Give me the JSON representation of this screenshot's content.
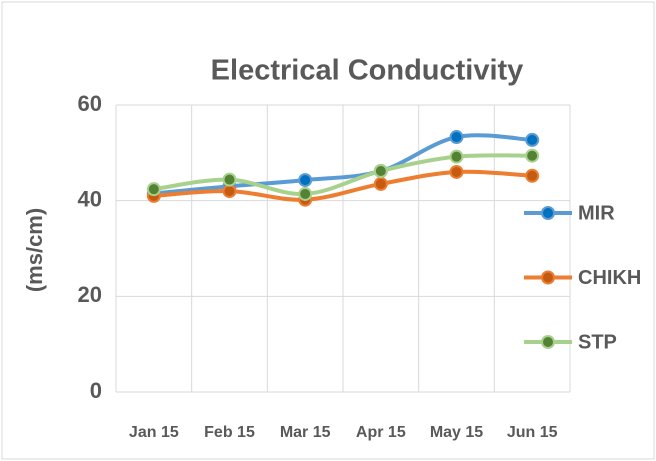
{
  "chart_data": {
    "type": "line",
    "title": "Electrical Conductivity",
    "y_label": "(ms/cm)",
    "categories": [
      "Jan 15",
      "Feb 15",
      "Mar 15",
      "Apr 15",
      "May 15",
      "Jun 15"
    ],
    "series": [
      {
        "name": "MIR",
        "color": "#5b9bd5",
        "marker_color": "#0070c0",
        "values": [
          41.5,
          43,
          44.3,
          46.2,
          53.3,
          52.7
        ]
      },
      {
        "name": "CHIKH",
        "color": "#ed7d31",
        "marker_color": "#c55a11",
        "values": [
          41,
          42,
          40.2,
          43.5,
          46,
          45.2
        ]
      },
      {
        "name": "STP",
        "color": "#a9d18e",
        "marker_color": "#548235",
        "values": [
          42.4,
          44.4,
          41.4,
          46.2,
          49.2,
          49.4
        ]
      }
    ],
    "ylim": [
      0,
      60
    ],
    "yticks": [
      0,
      20,
      40,
      60
    ],
    "grid": true,
    "smooth": true,
    "legend": "right"
  }
}
